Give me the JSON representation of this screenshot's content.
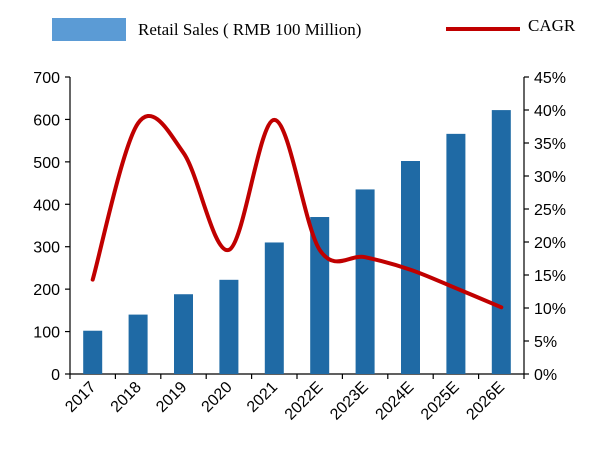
{
  "chart_data": {
    "type": "bar+line",
    "categories": [
      "2017",
      "2018",
      "2019",
      "2020",
      "2021",
      "2022E",
      "2023E",
      "2024E",
      "2025E",
      "2026E"
    ],
    "series": [
      {
        "name": "Retail Sales ( RMB 100 Million)",
        "type": "bar",
        "axis": "left",
        "color": "#1f6aa5",
        "values": [
          102,
          140,
          188,
          222,
          310,
          370,
          435,
          502,
          566,
          622
        ]
      },
      {
        "name": "CAGR",
        "type": "line",
        "axis": "right",
        "color": "#c00000",
        "values": [
          0.143,
          0.38,
          0.335,
          0.188,
          0.385,
          0.188,
          0.177,
          0.158,
          0.13,
          0.101
        ]
      }
    ],
    "left_axis": {
      "ylim": [
        0,
        700
      ],
      "ticks": [
        0,
        100,
        200,
        300,
        400,
        500,
        600,
        700
      ],
      "tick_labels": [
        "0",
        "100",
        "200",
        "300",
        "400",
        "500",
        "600",
        "700"
      ]
    },
    "right_axis": {
      "ylim": [
        0,
        0.45
      ],
      "ticks": [
        0,
        0.05,
        0.1,
        0.15,
        0.2,
        0.25,
        0.3,
        0.35,
        0.4,
        0.45
      ],
      "tick_labels": [
        "0%",
        "5%",
        "10%",
        "15%",
        "20%",
        "25%",
        "30%",
        "35%",
        "40%",
        "45%"
      ]
    },
    "legend": {
      "position": "top",
      "entries": [
        "Retail Sales ( RMB 100 Million)",
        "CAGR"
      ]
    },
    "grid": false
  }
}
